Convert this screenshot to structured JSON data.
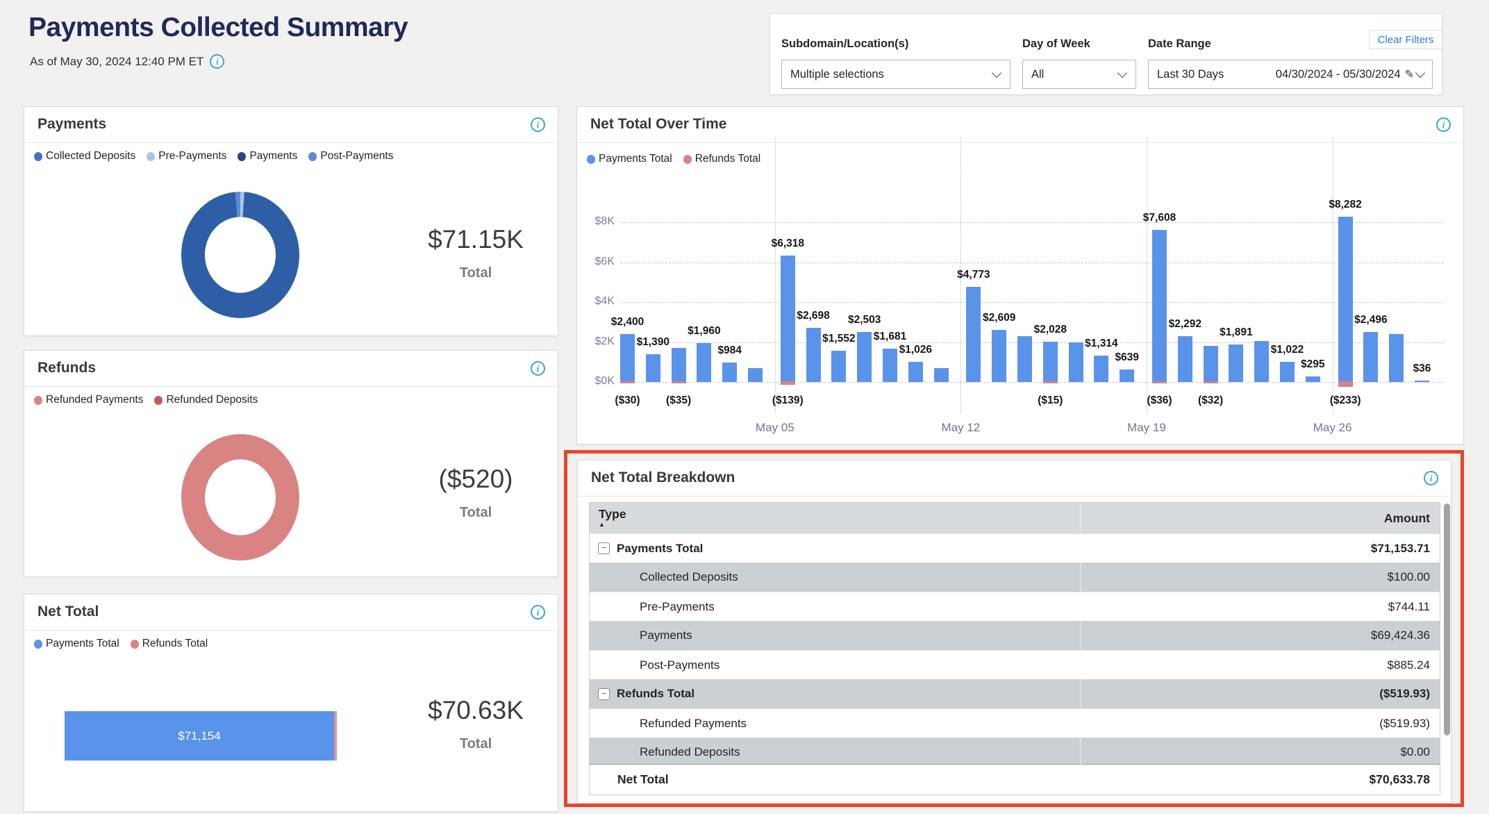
{
  "icons": {
    "info": "i",
    "pencil": "✎",
    "sort_asc": "▲",
    "collapse": "−"
  },
  "header": {
    "title": "Payments Collected Summary",
    "as_of": "As of May 30, 2024 12:40 PM ET"
  },
  "filters": {
    "clear_button": "Clear Filters",
    "subdomain_label": "Subdomain/Location(s)",
    "subdomain_value": "Multiple selections",
    "day_of_week_label": "Day of Week",
    "day_of_week_value": "All",
    "date_range_label": "Date Range",
    "date_range_preset": "Last 30 Days",
    "date_range_value": "04/30/2024 - 05/30/2024"
  },
  "payments": {
    "title": "Payments",
    "legend": [
      {
        "label": "Collected Deposits",
        "color": "#4472C4"
      },
      {
        "label": "Pre-Payments",
        "color": "#A9C6E9"
      },
      {
        "label": "Payments",
        "color": "#24477E"
      },
      {
        "label": "Post-Payments",
        "color": "#5B8BD5"
      }
    ],
    "total_value": "$71.15K",
    "total_label": "Total"
  },
  "refunds": {
    "title": "Refunds",
    "legend": [
      {
        "label": "Refunded Payments",
        "color": "#D98383"
      },
      {
        "label": "Refunded Deposits",
        "color": "#C55A5A"
      }
    ],
    "total_value": "($520)",
    "total_label": "Total"
  },
  "net_total": {
    "title": "Net Total",
    "legend": [
      {
        "label": "Payments Total",
        "color": "#5A93EA"
      },
      {
        "label": "Refunds Total",
        "color": "#D98383"
      }
    ],
    "bar_label": "$71,154",
    "total_value": "$70.63K",
    "total_label": "Total"
  },
  "over_time": {
    "title": "Net Total Over Time",
    "legend": [
      {
        "label": "Payments Total",
        "color": "#5A93EA"
      },
      {
        "label": "Refunds Total",
        "color": "#D98383"
      }
    ]
  },
  "breakdown": {
    "title": "Net Total Breakdown",
    "col_type": "Type",
    "col_amount": "Amount"
  },
  "chart_data": [
    {
      "type": "pie",
      "title": "Payments",
      "total_label": "$71.15K",
      "slices": [
        {
          "name": "Collected Deposits",
          "value": 100.0,
          "color": "#4472C4"
        },
        {
          "name": "Pre-Payments",
          "value": 744.11,
          "color": "#A9C6E9"
        },
        {
          "name": "Payments",
          "value": 69424.36,
          "color": "#2E5FA6"
        },
        {
          "name": "Post-Payments",
          "value": 885.24,
          "color": "#5B8BD5"
        }
      ]
    },
    {
      "type": "pie",
      "title": "Refunds",
      "total_label": "($520)",
      "slices": [
        {
          "name": "Refunded Payments",
          "value": -519.93,
          "color": "#D98383"
        },
        {
          "name": "Refunded Deposits",
          "value": 0,
          "color": "#C55A5A"
        }
      ]
    },
    {
      "type": "bar",
      "title": "Net Total",
      "orientation": "horizontal",
      "series": [
        {
          "name": "Payments Total",
          "value": 71154,
          "label": "$71,154",
          "color": "#5A93EA"
        },
        {
          "name": "Refunds Total",
          "value": -520,
          "color": "#E09490"
        }
      ],
      "total_label": "$70.63K"
    },
    {
      "type": "bar",
      "title": "Net Total Over Time",
      "ylim": [
        0,
        8000
      ],
      "grid": true,
      "y_ticks": [
        {
          "label": "$8K",
          "value": 8000
        },
        {
          "label": "$6K",
          "value": 6000
        },
        {
          "label": "$4K",
          "value": 4000
        },
        {
          "label": "$2K",
          "value": 2000
        },
        {
          "label": "$0K",
          "value": 0
        }
      ],
      "series": [
        {
          "name": "Payments Total",
          "color": "#5A93EA"
        },
        {
          "name": "Refunds Total",
          "color": "#D98383"
        }
      ],
      "dividers": [
        {
          "before_index": 6,
          "label": "May 05"
        },
        {
          "before_index": 13,
          "label": "May 12"
        },
        {
          "before_index": 20,
          "label": "May 19"
        },
        {
          "before_index": 27,
          "label": "May 26"
        }
      ],
      "bars": [
        {
          "value": 2400,
          "label": "$2,400",
          "refund": -30,
          "refund_label": "($30)"
        },
        {
          "value": 1390,
          "label": "$1,390"
        },
        {
          "value": 1700,
          "refund": -35,
          "refund_label": "($35)"
        },
        {
          "value": 1960,
          "label": "$1,960"
        },
        {
          "value": 984,
          "label": "$984"
        },
        {
          "value": 700
        },
        {
          "value": 6318,
          "label": "$6,318",
          "refund": -139,
          "refund_label": "($139)"
        },
        {
          "value": 2698,
          "label": "$2,698"
        },
        {
          "value": 1552,
          "label": "$1,552"
        },
        {
          "value": 2503,
          "label": "$2,503"
        },
        {
          "value": 1681,
          "label": "$1,681"
        },
        {
          "value": 1026,
          "label": "$1,026"
        },
        {
          "value": 700
        },
        {
          "value": 4773,
          "label": "$4,773"
        },
        {
          "value": 2609,
          "label": "$2,609"
        },
        {
          "value": 2300
        },
        {
          "value": 2028,
          "label": "$2,028",
          "refund": -15,
          "refund_label": "($15)"
        },
        {
          "value": 1990
        },
        {
          "value": 1314,
          "label": "$1,314"
        },
        {
          "value": 639,
          "label": "$639"
        },
        {
          "value": 7608,
          "label": "$7,608",
          "refund": -36,
          "refund_label": "($36)"
        },
        {
          "value": 2292,
          "label": "$2,292"
        },
        {
          "value": 1800,
          "refund": -32,
          "refund_label": "($32)"
        },
        {
          "value": 1891,
          "label": "$1,891"
        },
        {
          "value": 2050
        },
        {
          "value": 1022,
          "label": "$1,022"
        },
        {
          "value": 295,
          "label": "$295"
        },
        {
          "value": 8282,
          "label": "$8,282",
          "refund": -233,
          "refund_label": "($233)"
        },
        {
          "value": 2496,
          "label": "$2,496"
        },
        {
          "value": 2400
        },
        {
          "value": 36,
          "label": "$36"
        }
      ]
    },
    {
      "type": "table",
      "title": "Net Total Breakdown",
      "columns": [
        "Type",
        "Amount"
      ],
      "rows": [
        {
          "type": "Payments Total",
          "amount": "$71,153.71",
          "bold": true,
          "collapse": true,
          "indent": 0,
          "shade": false
        },
        {
          "type": "Collected Deposits",
          "amount": "$100.00",
          "bold": false,
          "collapse": false,
          "indent": 1,
          "shade": true
        },
        {
          "type": "Pre-Payments",
          "amount": "$744.11",
          "bold": false,
          "collapse": false,
          "indent": 1,
          "shade": false
        },
        {
          "type": "Payments",
          "amount": "$69,424.36",
          "bold": false,
          "collapse": false,
          "indent": 1,
          "shade": true
        },
        {
          "type": "Post-Payments",
          "amount": "$885.24",
          "bold": false,
          "collapse": false,
          "indent": 1,
          "shade": false
        },
        {
          "type": "Refunds Total",
          "amount": "($519.93)",
          "bold": true,
          "collapse": true,
          "indent": 0,
          "shade": true
        },
        {
          "type": "Refunded Payments",
          "amount": "($519.93)",
          "bold": false,
          "collapse": false,
          "indent": 1,
          "shade": false
        },
        {
          "type": "Refunded Deposits",
          "amount": "$0.00",
          "bold": false,
          "collapse": false,
          "indent": 1,
          "shade": true
        }
      ],
      "footer": {
        "type": "Net Total",
        "amount": "$70,633.78"
      }
    }
  ]
}
